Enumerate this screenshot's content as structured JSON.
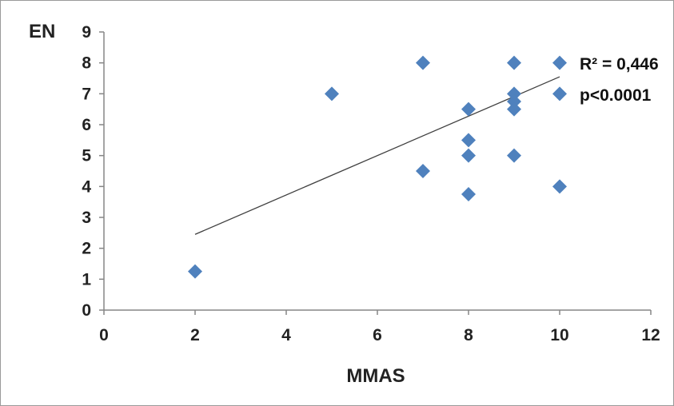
{
  "chart_data": {
    "type": "scatter",
    "xlabel": "MMAS",
    "ylabel": "EN",
    "xlim": [
      0,
      12
    ],
    "ylim": [
      0,
      9
    ],
    "x_ticks": [
      "0",
      "2",
      "4",
      "6",
      "8",
      "10",
      "12"
    ],
    "y_ticks": [
      "0",
      "1",
      "2",
      "3",
      "4",
      "5",
      "6",
      "7",
      "8",
      "9"
    ],
    "grid": false,
    "marker": "diamond",
    "marker_color": "#4f81bd",
    "trendline_color": "#404040",
    "series": [
      {
        "points": [
          [
            2,
            1.25
          ],
          [
            5,
            7.0
          ],
          [
            7,
            8.0
          ],
          [
            7,
            4.5
          ],
          [
            8,
            6.5
          ],
          [
            8,
            5.5
          ],
          [
            8,
            5.0
          ],
          [
            8,
            3.75
          ],
          [
            9,
            8.0
          ],
          [
            9,
            7.0
          ],
          [
            9,
            6.75
          ],
          [
            9,
            6.5
          ],
          [
            9,
            5.0
          ],
          [
            10,
            8.0
          ],
          [
            10,
            7.0
          ],
          [
            10,
            4.0
          ]
        ]
      }
    ],
    "trendline": {
      "x": [
        2,
        10
      ],
      "y": [
        2.45,
        7.55
      ]
    },
    "annotations": [
      "R² = 0,446",
      "p<0.0001"
    ]
  }
}
